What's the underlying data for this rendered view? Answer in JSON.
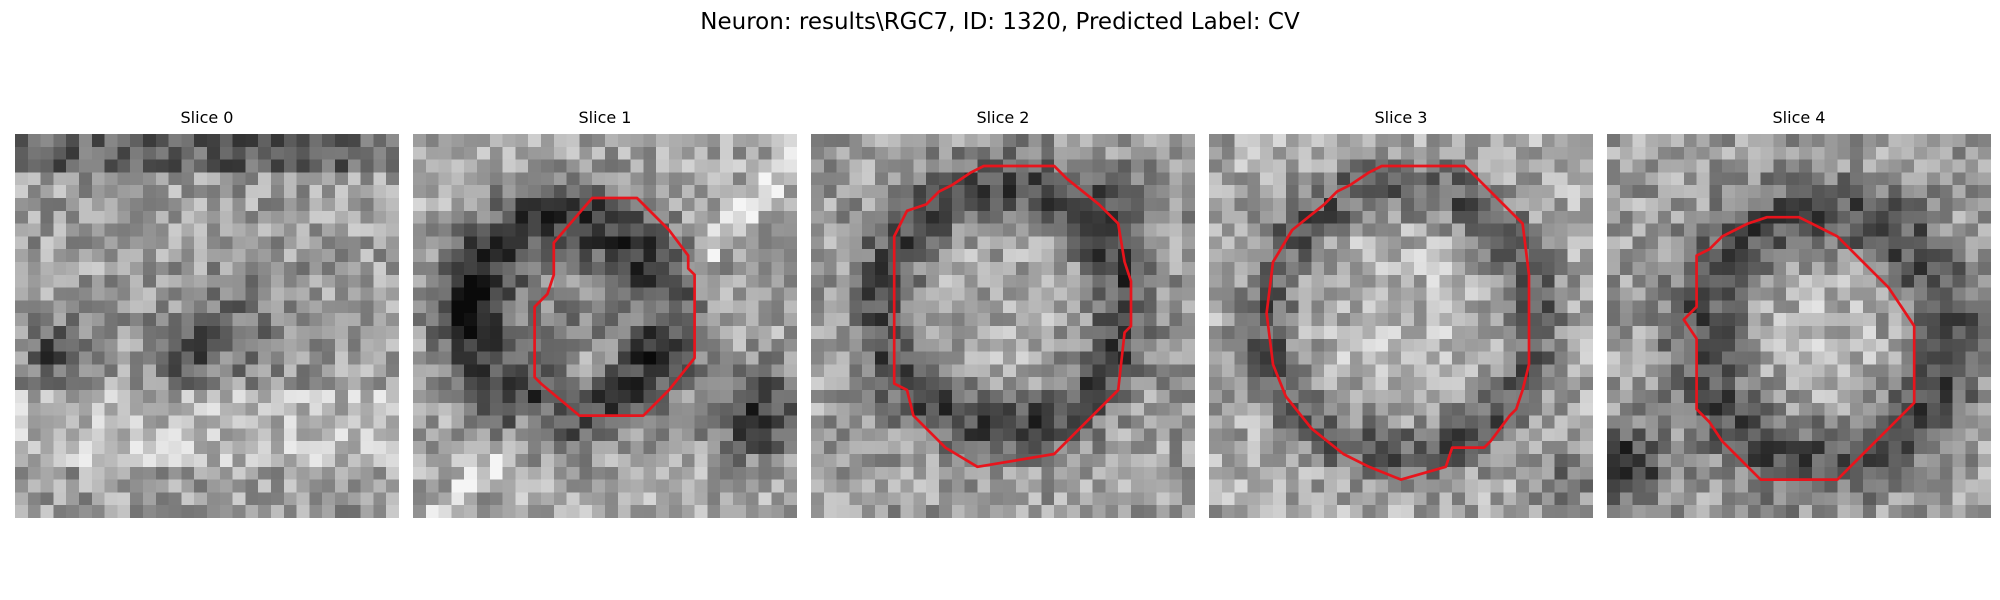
{
  "figure": {
    "title": "Neuron: results\\RGC7, ID: 1320, Predicted Label: CV"
  },
  "colors": {
    "background": "#ffffff",
    "contour": "#e8141c",
    "colormap": "gray"
  },
  "slices": [
    {
      "title": "Slice 0",
      "has_contour": false
    },
    {
      "title": "Slice 1",
      "has_contour": true
    },
    {
      "title": "Slice 2",
      "has_contour": true
    },
    {
      "title": "Slice 3",
      "has_contour": true
    },
    {
      "title": "Slice 4",
      "has_contour": true
    }
  ]
}
